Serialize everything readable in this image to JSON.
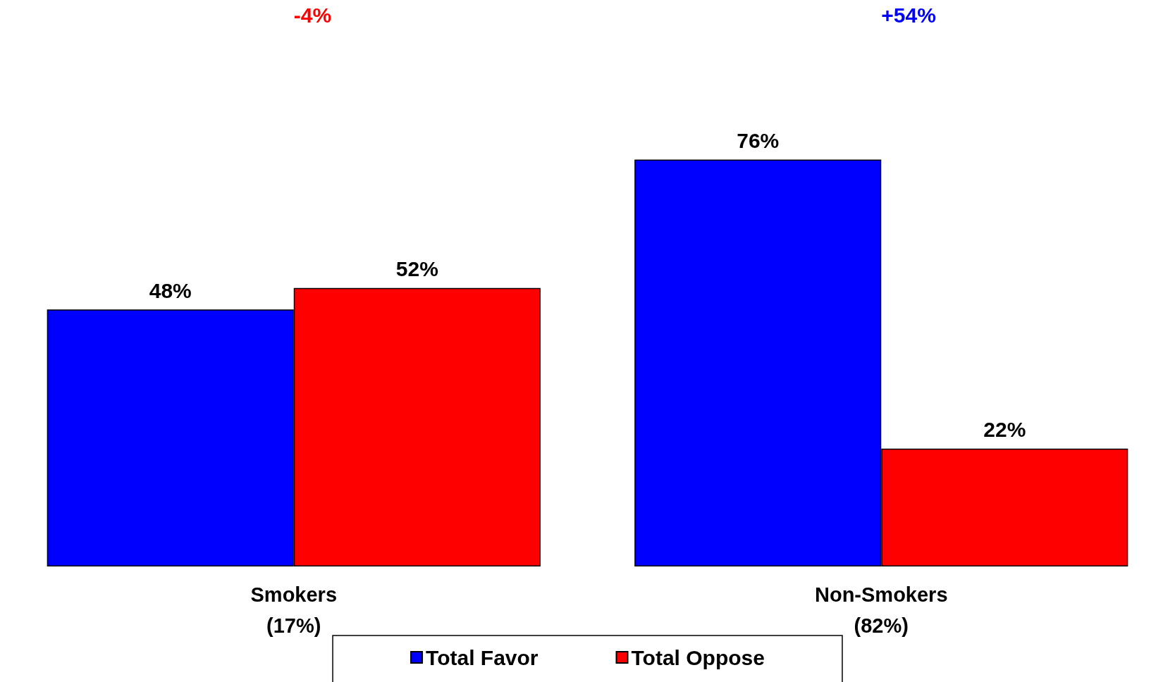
{
  "chart_data": {
    "type": "bar",
    "categories": [
      "Smokers\n(17%)",
      "Non-Smokers\n(82%)"
    ],
    "series": [
      {
        "name": "Total Favor",
        "color": "#0000ff",
        "values": [
          48,
          76
        ],
        "value_labels": [
          "48%",
          "76%"
        ]
      },
      {
        "name": "Total Oppose",
        "color": "#ff0000",
        "values": [
          52,
          22
        ],
        "value_labels": [
          "52%",
          "22%"
        ]
      }
    ],
    "legend": "bottom",
    "annotations": [
      "-4%",
      "+54%"
    ]
  }
}
